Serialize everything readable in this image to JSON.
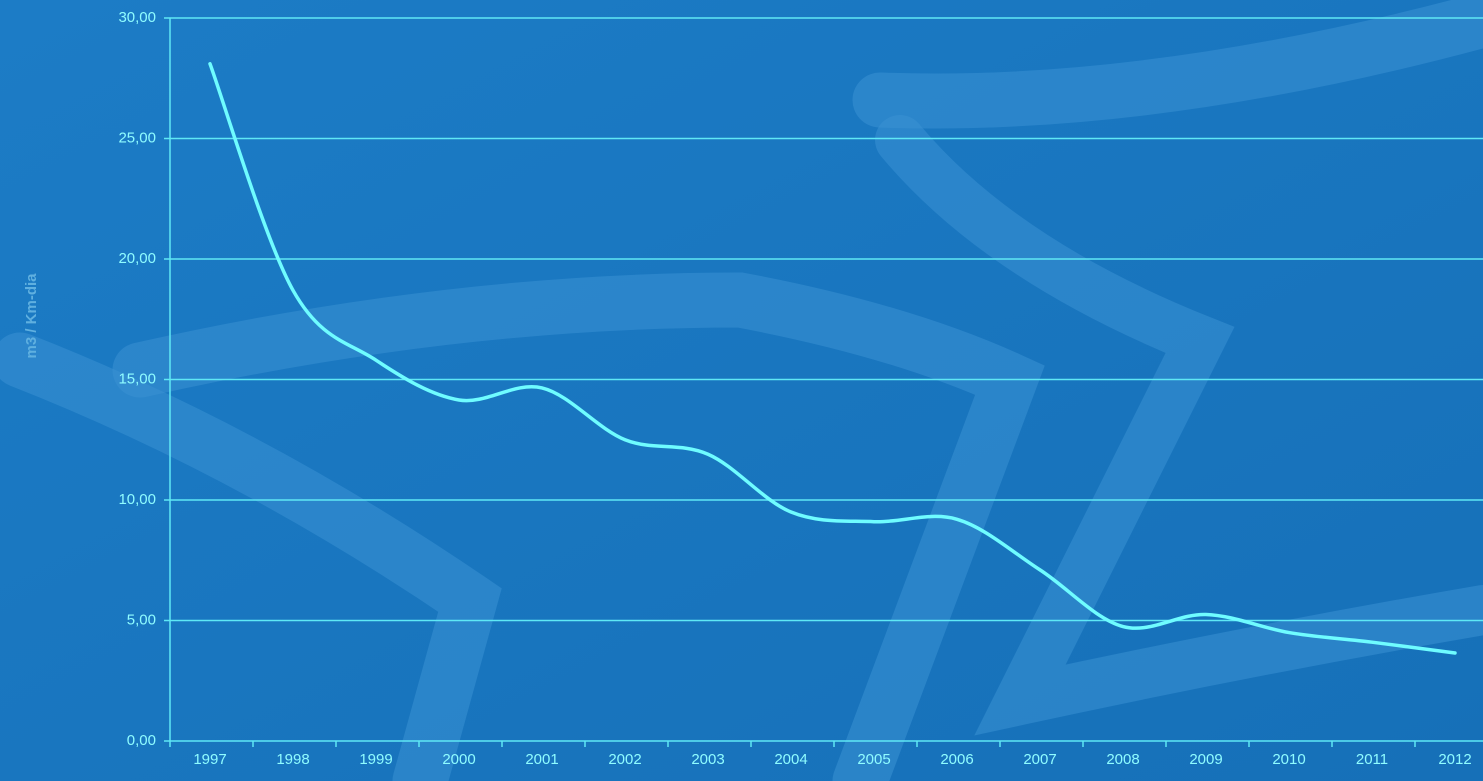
{
  "chart_data": {
    "type": "line",
    "y_axis_label": "m3 / Km-dia",
    "categories": [
      "1997",
      "1998",
      "1999",
      "2000",
      "2001",
      "2002",
      "2003",
      "2004",
      "2005",
      "2006",
      "2007",
      "2008",
      "2009",
      "2010",
      "2011",
      "2012"
    ],
    "series": [
      {
        "color": "#6ffcff",
        "values": [
          28.1,
          18.7,
          15.8,
          14.15,
          14.65,
          12.5,
          11.9,
          9.5,
          9.1,
          9.2,
          7.1,
          4.75,
          5.25,
          4.5,
          4.1,
          3.65
        ]
      }
    ],
    "ylim": [
      0,
      30
    ],
    "yticks": [
      {
        "value": 0,
        "label": "0,00"
      },
      {
        "value": 5,
        "label": "5,00"
      },
      {
        "value": 10,
        "label": "10,00"
      },
      {
        "value": 15,
        "label": "15,00"
      },
      {
        "value": 20,
        "label": "20,00"
      },
      {
        "value": 25,
        "label": "25,00"
      },
      {
        "value": 30,
        "label": "30,00"
      }
    ],
    "grid": true,
    "grid_color": "#5fe8f5"
  }
}
